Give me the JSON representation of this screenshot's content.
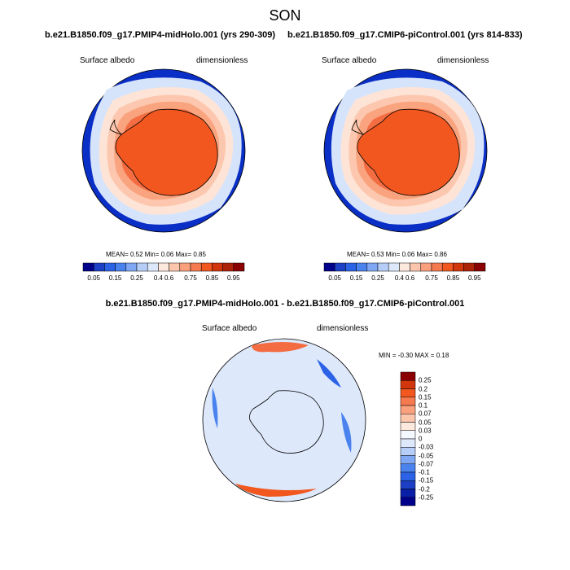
{
  "figure": {
    "title": "SON",
    "subtitle_left": "b.e21.B1850.f09_g17.PMIP4-midHolo.001 (yrs 290-309)",
    "subtitle_right": "b.e21.B1850.f09_g17.CMIP6-piControl.001 (yrs 814-833)",
    "diff_title": "b.e21.B1850.f09_g17.PMIP4-midHolo.001 - b.e21.B1850.f09_g17.CMIP6-piControl.001"
  },
  "panels": [
    {
      "var_label": "Surface albedo",
      "units_label": "dimensionless",
      "stats": "MEAN=  0.52  Min=  0.06  Max=  0.85"
    },
    {
      "var_label": "Surface albedo",
      "units_label": "dimensionless",
      "stats": "MEAN=  0.53  Min=  0.06  Max=  0.86"
    },
    {
      "var_label": "Surface albedo",
      "units_label": "dimensionless",
      "stats": "MIN =  -0.30  MAX =   0.18"
    }
  ],
  "chart_data": [
    {
      "type": "heatmap",
      "projection": "south polar stereographic",
      "legend_levels": [
        0.05,
        0.15,
        0.25,
        0.4,
        0.6,
        0.75,
        0.85,
        0.95
      ],
      "colors": [
        "#00008b",
        "#1d3fc6",
        "#2c63e6",
        "#4a82ee",
        "#7fa7f3",
        "#b6cdf7",
        "#dde8fb",
        "#fde8dd",
        "#fcc6ad",
        "#fba07d",
        "#f57a50",
        "#f1571f",
        "#d2360c",
        "#ad2307",
        "#8b0000"
      ],
      "stats": {
        "mean": 0.52,
        "min": 0.06,
        "max": 0.85
      }
    },
    {
      "type": "heatmap",
      "projection": "south polar stereographic",
      "legend_levels": [
        0.05,
        0.15,
        0.25,
        0.4,
        0.6,
        0.75,
        0.85,
        0.95
      ],
      "colors": [
        "#00008b",
        "#1d3fc6",
        "#2c63e6",
        "#4a82ee",
        "#7fa7f3",
        "#b6cdf7",
        "#dde8fb",
        "#fde8dd",
        "#fcc6ad",
        "#fba07d",
        "#f57a50",
        "#f1571f",
        "#d2360c",
        "#ad2307",
        "#8b0000"
      ],
      "stats": {
        "mean": 0.53,
        "min": 0.06,
        "max": 0.86
      }
    },
    {
      "type": "heatmap",
      "projection": "south polar stereographic",
      "legend_levels": [
        "0.25",
        "0.2",
        "0.15",
        "0.1",
        "0.07",
        "0.05",
        "0.03",
        "0",
        "-0.03",
        "-0.05",
        "-0.07",
        "-0.1",
        "-0.15",
        "-0.2",
        "-0.25"
      ],
      "colors": [
        "#8b0000",
        "#d2360c",
        "#f1571f",
        "#f57a50",
        "#fba07d",
        "#fcc6ad",
        "#fde8dd",
        "#f4f8ff",
        "#dde8fb",
        "#b6cdf7",
        "#7fa7f3",
        "#4a82ee",
        "#2c63e6",
        "#1d3fc6",
        "#0a1fa8",
        "#00008b"
      ],
      "stats": {
        "min": -0.3,
        "max": 0.18
      }
    }
  ]
}
